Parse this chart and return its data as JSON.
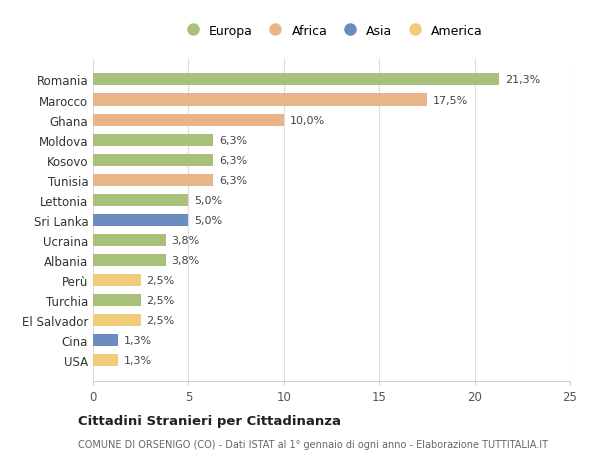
{
  "countries": [
    "Romania",
    "Marocco",
    "Ghana",
    "Moldova",
    "Kosovo",
    "Tunisia",
    "Lettonia",
    "Sri Lanka",
    "Ucraina",
    "Albania",
    "Perù",
    "Turchia",
    "El Salvador",
    "Cina",
    "USA"
  ],
  "values": [
    21.3,
    17.5,
    10.0,
    6.3,
    6.3,
    6.3,
    5.0,
    5.0,
    3.8,
    3.8,
    2.5,
    2.5,
    2.5,
    1.3,
    1.3
  ],
  "continents": [
    "Europa",
    "Africa",
    "Africa",
    "Europa",
    "Europa",
    "Africa",
    "Europa",
    "Asia",
    "Europa",
    "Europa",
    "America",
    "Europa",
    "America",
    "Asia",
    "America"
  ],
  "colors": {
    "Europa": "#a8c07a",
    "Africa": "#e8b48a",
    "Asia": "#6b8cbf",
    "America": "#f0cc7a"
  },
  "labels": [
    "21,3%",
    "17,5%",
    "10,0%",
    "6,3%",
    "6,3%",
    "6,3%",
    "5,0%",
    "5,0%",
    "3,8%",
    "3,8%",
    "2,5%",
    "2,5%",
    "2,5%",
    "1,3%",
    "1,3%"
  ],
  "xlim": [
    0,
    25
  ],
  "xticks": [
    0,
    5,
    10,
    15,
    20,
    25
  ],
  "title": "Cittadini Stranieri per Cittadinanza",
  "subtitle": "COMUNE DI ORSENIGO (CO) - Dati ISTAT al 1° gennaio di ogni anno - Elaborazione TUTTITALIA.IT",
  "background_color": "#ffffff",
  "bar_height": 0.6,
  "legend_order": [
    "Europa",
    "Africa",
    "Asia",
    "America"
  ]
}
